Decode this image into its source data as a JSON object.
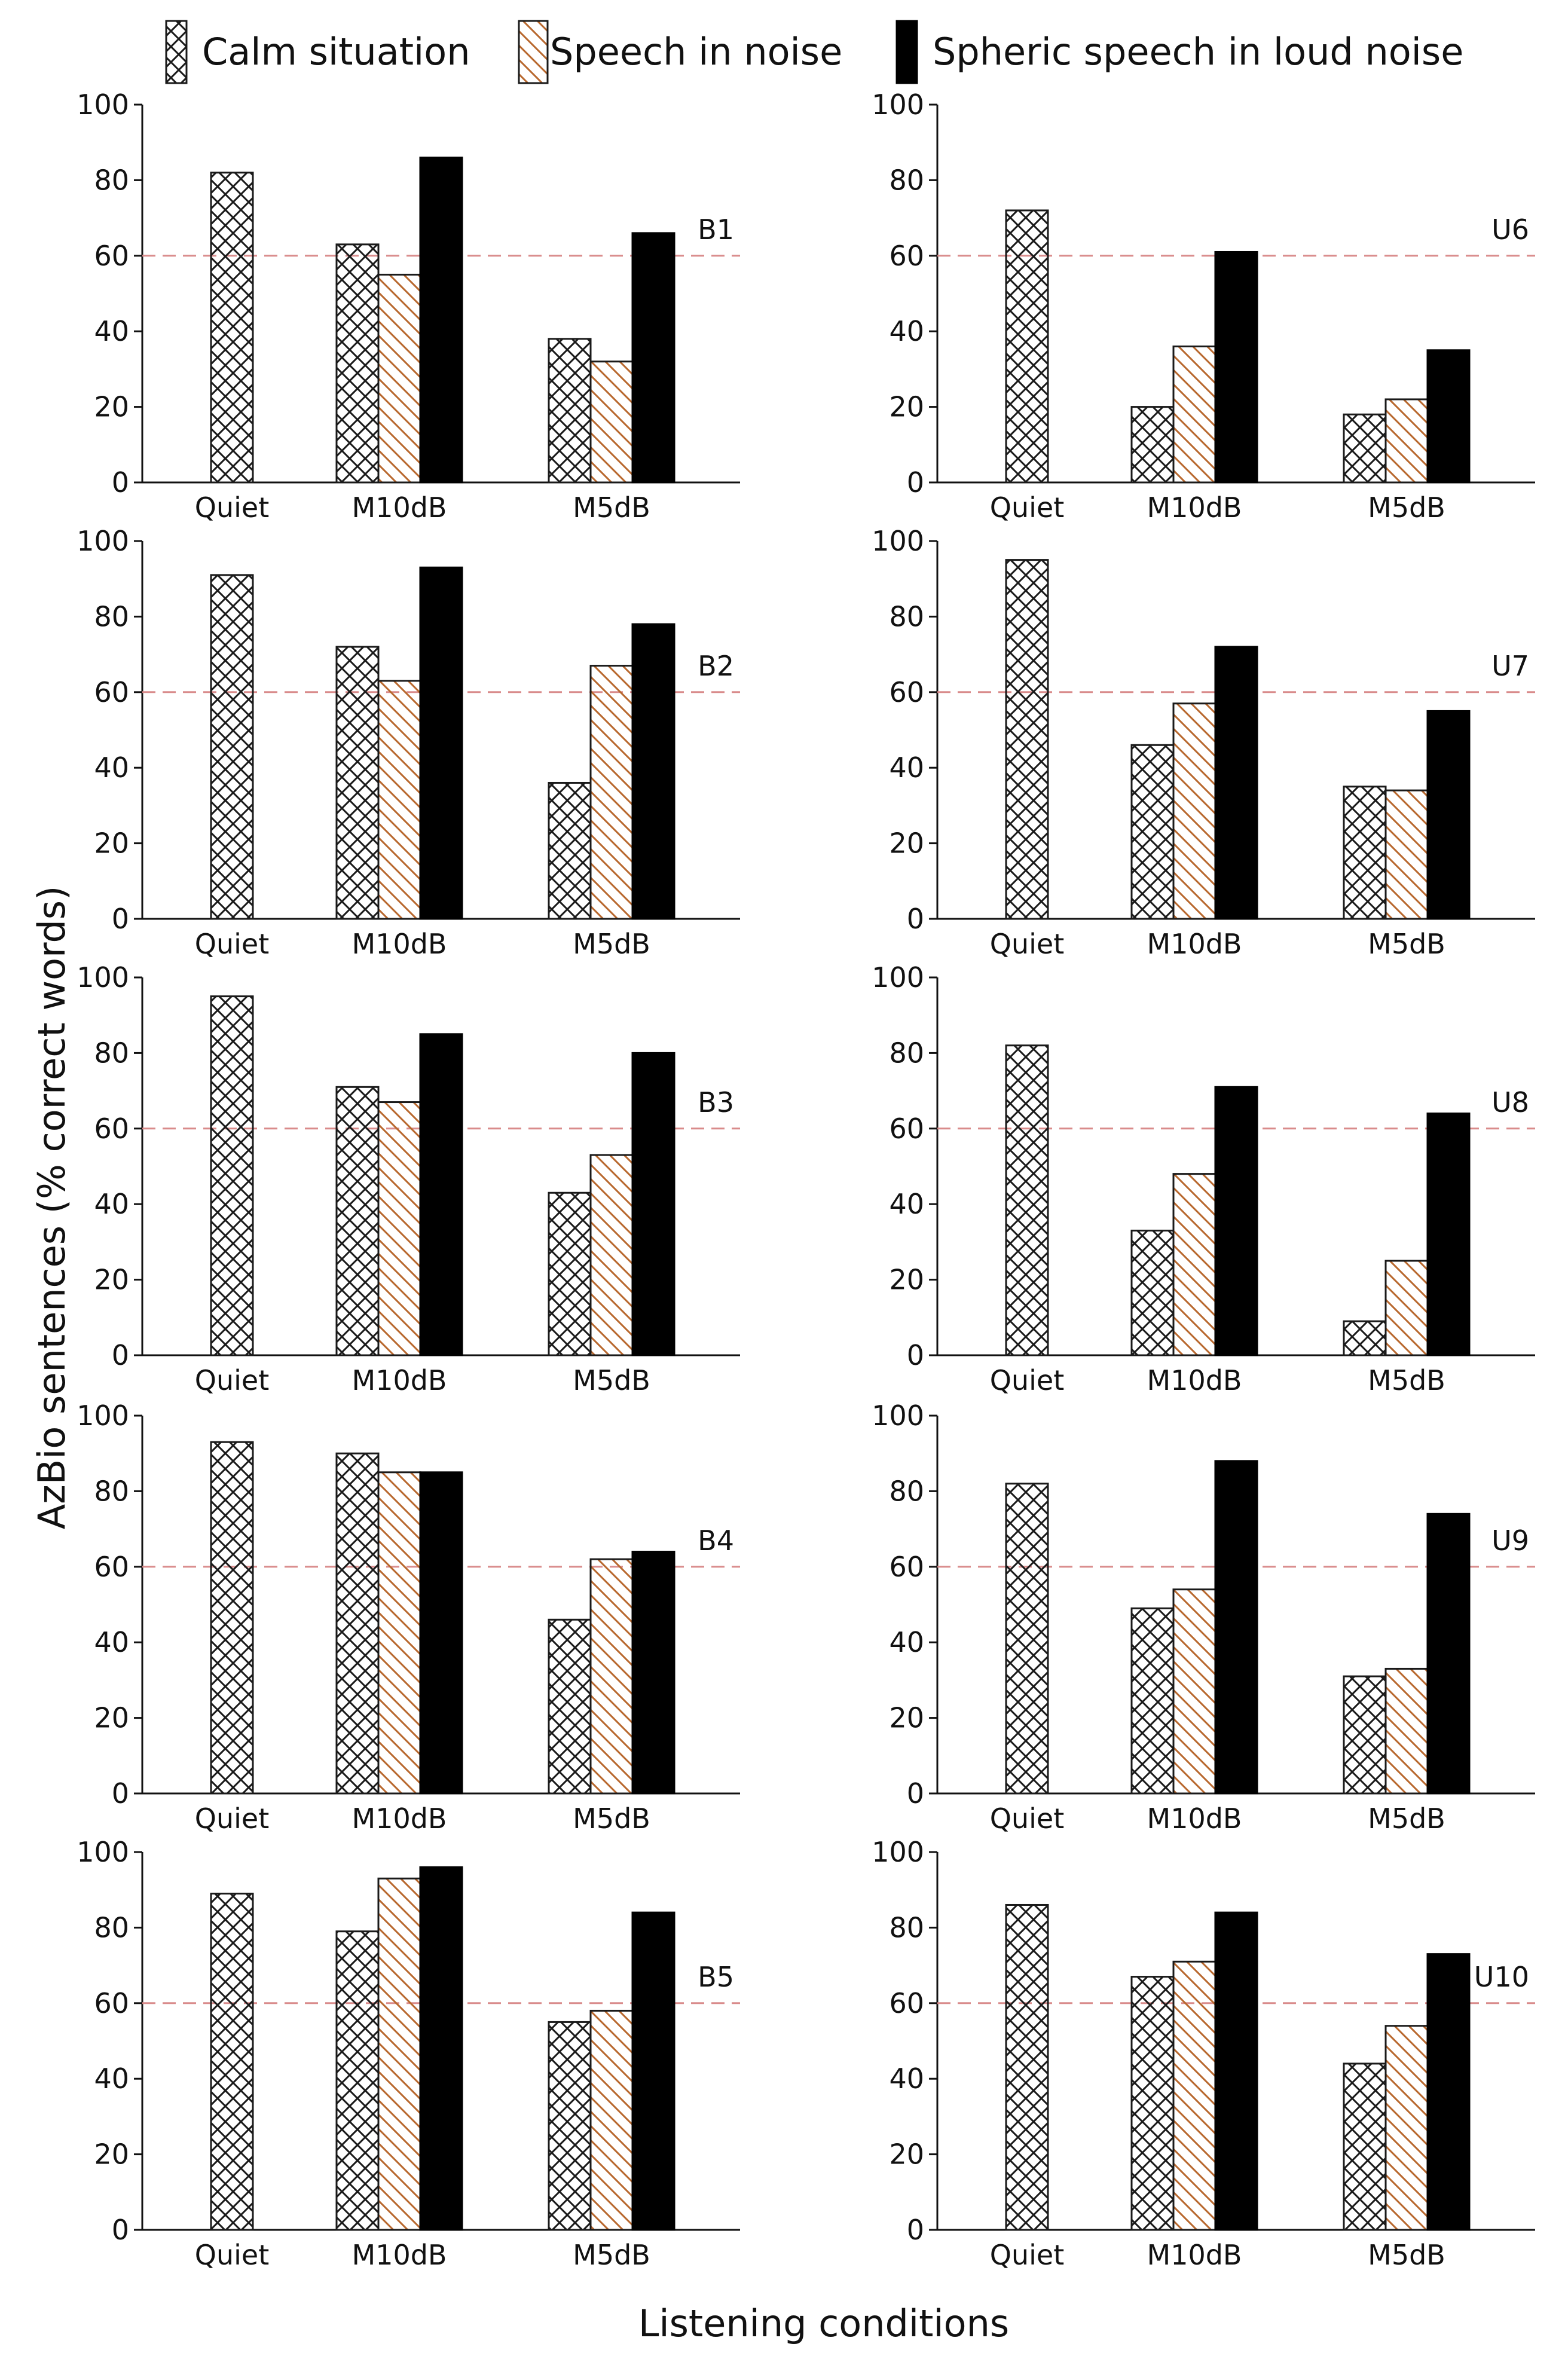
{
  "chart_data": {
    "type": "bar",
    "xlabel": "Listening conditions",
    "ylabel": "AzBio sentences (% correct words)",
    "ylim": [
      0,
      100
    ],
    "yticks": [
      0,
      20,
      40,
      60,
      80,
      100
    ],
    "reference_line": 60,
    "categories": [
      "Quiet",
      "M10dB",
      "M5dB"
    ],
    "legend": {
      "position": "top",
      "entries": [
        "Calm situation",
        "Speech in noise",
        "Spheric speech in loud noise"
      ]
    },
    "series_colors": {
      "calm": "#1a1a1a",
      "noise": "#b8682e",
      "spheric": "#000000",
      "reference": "#d98b8b"
    },
    "panels": [
      {
        "label": "B1",
        "series": [
          {
            "name": "Calm situation",
            "values": [
              82,
              63,
              38
            ]
          },
          {
            "name": "Speech in noise",
            "values": [
              null,
              55,
              32
            ]
          },
          {
            "name": "Spheric speech in loud noise",
            "values": [
              null,
              86,
              66
            ]
          }
        ]
      },
      {
        "label": "U6",
        "series": [
          {
            "name": "Calm situation",
            "values": [
              72,
              20,
              18
            ]
          },
          {
            "name": "Speech in noise",
            "values": [
              null,
              36,
              22
            ]
          },
          {
            "name": "Spheric speech in loud noise",
            "values": [
              null,
              61,
              35
            ]
          }
        ]
      },
      {
        "label": "B2",
        "series": [
          {
            "name": "Calm situation",
            "values": [
              91,
              72,
              36
            ]
          },
          {
            "name": "Speech in noise",
            "values": [
              null,
              63,
              67
            ]
          },
          {
            "name": "Spheric speech in loud noise",
            "values": [
              null,
              93,
              78
            ]
          }
        ]
      },
      {
        "label": "U7",
        "series": [
          {
            "name": "Calm situation",
            "values": [
              95,
              46,
              35
            ]
          },
          {
            "name": "Speech in noise",
            "values": [
              null,
              57,
              34
            ]
          },
          {
            "name": "Spheric speech in loud noise",
            "values": [
              null,
              72,
              55
            ]
          }
        ]
      },
      {
        "label": "B3",
        "series": [
          {
            "name": "Calm situation",
            "values": [
              95,
              71,
              43
            ]
          },
          {
            "name": "Speech in noise",
            "values": [
              null,
              67,
              53
            ]
          },
          {
            "name": "Spheric speech in loud noise",
            "values": [
              null,
              85,
              80
            ]
          }
        ]
      },
      {
        "label": "U8",
        "series": [
          {
            "name": "Calm situation",
            "values": [
              82,
              33,
              9
            ]
          },
          {
            "name": "Speech in noise",
            "values": [
              null,
              48,
              25
            ]
          },
          {
            "name": "Spheric speech in loud noise",
            "values": [
              null,
              71,
              64
            ]
          }
        ]
      },
      {
        "label": "B4",
        "series": [
          {
            "name": "Calm situation",
            "values": [
              93,
              90,
              46
            ]
          },
          {
            "name": "Speech in noise",
            "values": [
              null,
              85,
              62
            ]
          },
          {
            "name": "Spheric speech in loud noise",
            "values": [
              null,
              85,
              64
            ]
          }
        ]
      },
      {
        "label": "U9",
        "series": [
          {
            "name": "Calm situation",
            "values": [
              82,
              49,
              31
            ]
          },
          {
            "name": "Speech in noise",
            "values": [
              null,
              54,
              33
            ]
          },
          {
            "name": "Spheric speech in loud noise",
            "values": [
              null,
              88,
              74
            ]
          }
        ]
      },
      {
        "label": "B5",
        "series": [
          {
            "name": "Calm situation",
            "values": [
              89,
              79,
              55
            ]
          },
          {
            "name": "Speech in noise",
            "values": [
              null,
              93,
              58
            ]
          },
          {
            "name": "Spheric speech in loud noise",
            "values": [
              null,
              96,
              84
            ]
          }
        ]
      },
      {
        "label": "U10",
        "series": [
          {
            "name": "Calm situation",
            "values": [
              86,
              67,
              44
            ]
          },
          {
            "name": "Speech in noise",
            "values": [
              null,
              71,
              54
            ]
          },
          {
            "name": "Spheric speech in loud noise",
            "values": [
              null,
              84,
              73
            ]
          }
        ]
      }
    ]
  }
}
